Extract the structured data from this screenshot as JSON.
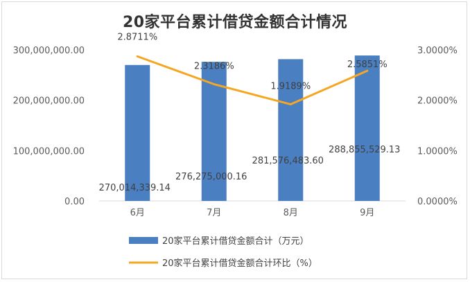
{
  "chart_data": {
    "title": "20家平台累计借贷金额合计情况",
    "categories": [
      "6月",
      "7月",
      "8月",
      "9月"
    ],
    "series": [
      {
        "name": "20家平台累计借贷金额合计（万元）",
        "type": "bar",
        "axis": "left",
        "color": "#4a7fc1",
        "values": [
          270014339.14,
          276275000.16,
          281576483.6,
          288855529.13
        ],
        "labels": [
          "270,014,339.14",
          "276,275,000.16",
          "281,576,483.60",
          "288,855,529.13"
        ]
      },
      {
        "name": "20家平台累计借贷金额合计环比（%）",
        "type": "line",
        "axis": "right",
        "color": "#f5a623",
        "values": [
          2.8711,
          2.3186,
          1.9189,
          2.5851
        ],
        "labels": [
          "2.8711%",
          "2.3186%",
          "1.9189%",
          "2.5851%"
        ]
      }
    ],
    "y_left": {
      "min": 0,
      "max": 300000000,
      "ticks": [
        0,
        100000000,
        200000000,
        300000000
      ],
      "tick_labels": [
        "0.00",
        "100,000,000.00",
        "200,000,000.00",
        "300,000,000.00"
      ]
    },
    "y_right": {
      "min": 0,
      "max": 3,
      "ticks": [
        0,
        1,
        2,
        3
      ],
      "tick_labels": [
        "0.0000%",
        "1.0000%",
        "2.0000%",
        "3.0000%"
      ]
    },
    "legend_position": "bottom",
    "grid": false
  }
}
